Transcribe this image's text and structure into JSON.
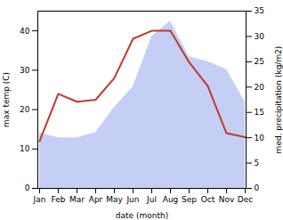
{
  "chart_data": {
    "type": "line",
    "xlabel": "date (month)",
    "ylabel": "max temp (C)",
    "y2label": "med. precipitation (kg/m2)",
    "categories": [
      "Jan",
      "Feb",
      "Mar",
      "Apr",
      "May",
      "Jun",
      "Jul",
      "Aug",
      "Sep",
      "Oct",
      "Nov",
      "Dec"
    ],
    "series": [
      {
        "type": "area",
        "axis": "y2",
        "color": "#c5cff5",
        "values": [
          11.0,
          10.0,
          10.0,
          11.0,
          16.0,
          20.0,
          30.0,
          33.0,
          26.0,
          25.0,
          23.5,
          17.0
        ]
      },
      {
        "type": "line",
        "color": "#c0392b",
        "values": [
          12.0,
          24.0,
          22.0,
          22.5,
          28.0,
          38.0,
          40.0,
          40.0,
          32.0,
          26.0,
          14.0,
          13.0
        ]
      }
    ],
    "ylim": [
      0,
      45
    ],
    "yticks": [
      0,
      10,
      20,
      30,
      40
    ],
    "y2lim": [
      0,
      35
    ],
    "y2ticks": [
      0,
      5,
      10,
      15,
      20,
      25,
      30,
      35
    ],
    "grid": false
  }
}
